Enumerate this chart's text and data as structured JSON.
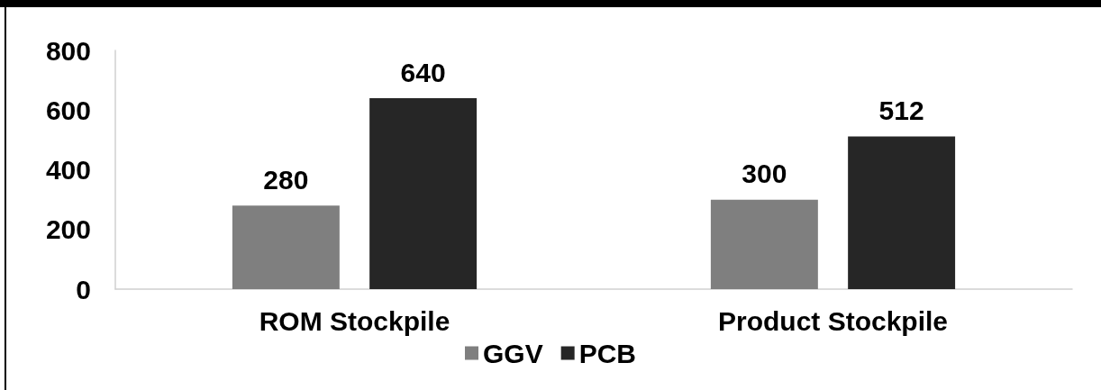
{
  "chart_data": {
    "type": "bar",
    "categories": [
      "ROM Stockpile",
      "Product Stockpile"
    ],
    "series": [
      {
        "name": "GGV",
        "color": "#7f7f7f",
        "values": [
          280,
          300
        ]
      },
      {
        "name": "PCB",
        "color": "#262626",
        "values": [
          640,
          512
        ]
      }
    ],
    "ylim": [
      0,
      800
    ],
    "yticks": [
      0,
      200,
      400,
      600,
      800
    ],
    "grid": false,
    "legend": "bottom",
    "data_labels": true
  }
}
